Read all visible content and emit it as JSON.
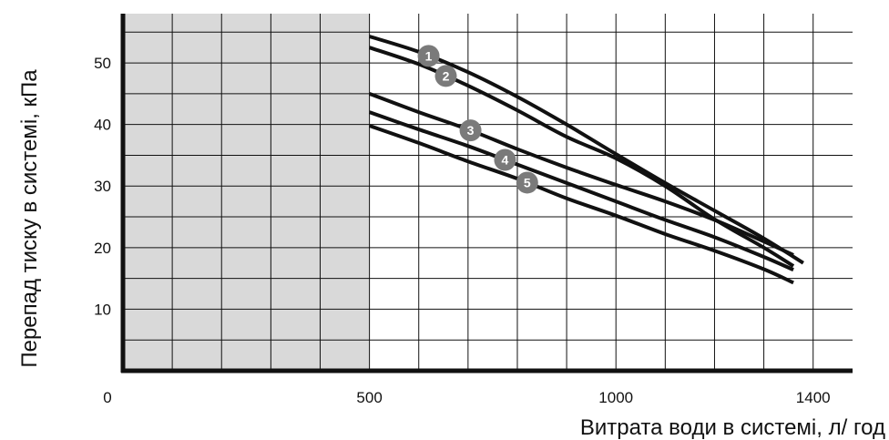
{
  "chart_data": {
    "type": "line",
    "xlabel": "Витрата води в системі, л/ год",
    "ylabel": "Перепад тиску в системі, кПа",
    "xlim": [
      0,
      1480
    ],
    "ylim": [
      0,
      58
    ],
    "grid": true,
    "shaded_region": {
      "x": [
        0,
        500
      ],
      "color": "#d9d9d9"
    },
    "x_ticks": [
      {
        "value": 0,
        "label": "0"
      },
      {
        "value": 500,
        "label": "500"
      },
      {
        "value": 1000,
        "label": "1000"
      },
      {
        "value": 1400,
        "label": "1400"
      }
    ],
    "y_ticks": [
      {
        "value": 10,
        "label": "10"
      },
      {
        "value": 20,
        "label": "20"
      },
      {
        "value": 30,
        "label": "30"
      },
      {
        "value": 40,
        "label": "40"
      },
      {
        "value": 50,
        "label": "50"
      }
    ],
    "series": [
      {
        "name": "1",
        "marker_at": 620,
        "points": [
          [
            500,
            54.3
          ],
          [
            600,
            51.8
          ],
          [
            700,
            48.5
          ],
          [
            800,
            44.5
          ],
          [
            900,
            40.0
          ],
          [
            1000,
            35.2
          ],
          [
            1100,
            30.5
          ],
          [
            1200,
            26.0
          ],
          [
            1300,
            21.5
          ],
          [
            1380,
            17.5
          ]
        ]
      },
      {
        "name": "2",
        "marker_at": 655,
        "points": [
          [
            500,
            52.5
          ],
          [
            600,
            49.8
          ],
          [
            700,
            46.3
          ],
          [
            800,
            42.3
          ],
          [
            900,
            38.0
          ],
          [
            1000,
            34.5
          ],
          [
            1100,
            30.0
          ],
          [
            1200,
            24.6
          ],
          [
            1300,
            20.0
          ],
          [
            1360,
            17.0
          ]
        ]
      },
      {
        "name": "3",
        "marker_at": 705,
        "points": [
          [
            500,
            45.0
          ],
          [
            600,
            42.0
          ],
          [
            700,
            39.2
          ],
          [
            800,
            36.0
          ],
          [
            900,
            33.0
          ],
          [
            1000,
            30.2
          ],
          [
            1100,
            27.5
          ],
          [
            1200,
            24.5
          ],
          [
            1300,
            21.0
          ],
          [
            1360,
            18.8
          ]
        ]
      },
      {
        "name": "4",
        "marker_at": 775,
        "points": [
          [
            500,
            42.0
          ],
          [
            600,
            39.2
          ],
          [
            700,
            36.5
          ],
          [
            800,
            33.5
          ],
          [
            900,
            30.5
          ],
          [
            1000,
            27.5
          ],
          [
            1100,
            24.5
          ],
          [
            1200,
            21.7
          ],
          [
            1300,
            18.5
          ],
          [
            1360,
            16.4
          ]
        ]
      },
      {
        "name": "5",
        "marker_at": 820,
        "points": [
          [
            500,
            39.8
          ],
          [
            600,
            37.0
          ],
          [
            700,
            34.0
          ],
          [
            800,
            31.2
          ],
          [
            900,
            28.0
          ],
          [
            1000,
            25.2
          ],
          [
            1100,
            22.2
          ],
          [
            1200,
            19.5
          ],
          [
            1300,
            16.5
          ],
          [
            1360,
            14.3
          ]
        ]
      }
    ],
    "colors": {
      "line": "#111111",
      "marker": "#7a7a7a",
      "grid": "#111111",
      "shade": "#d9d9d9"
    }
  }
}
